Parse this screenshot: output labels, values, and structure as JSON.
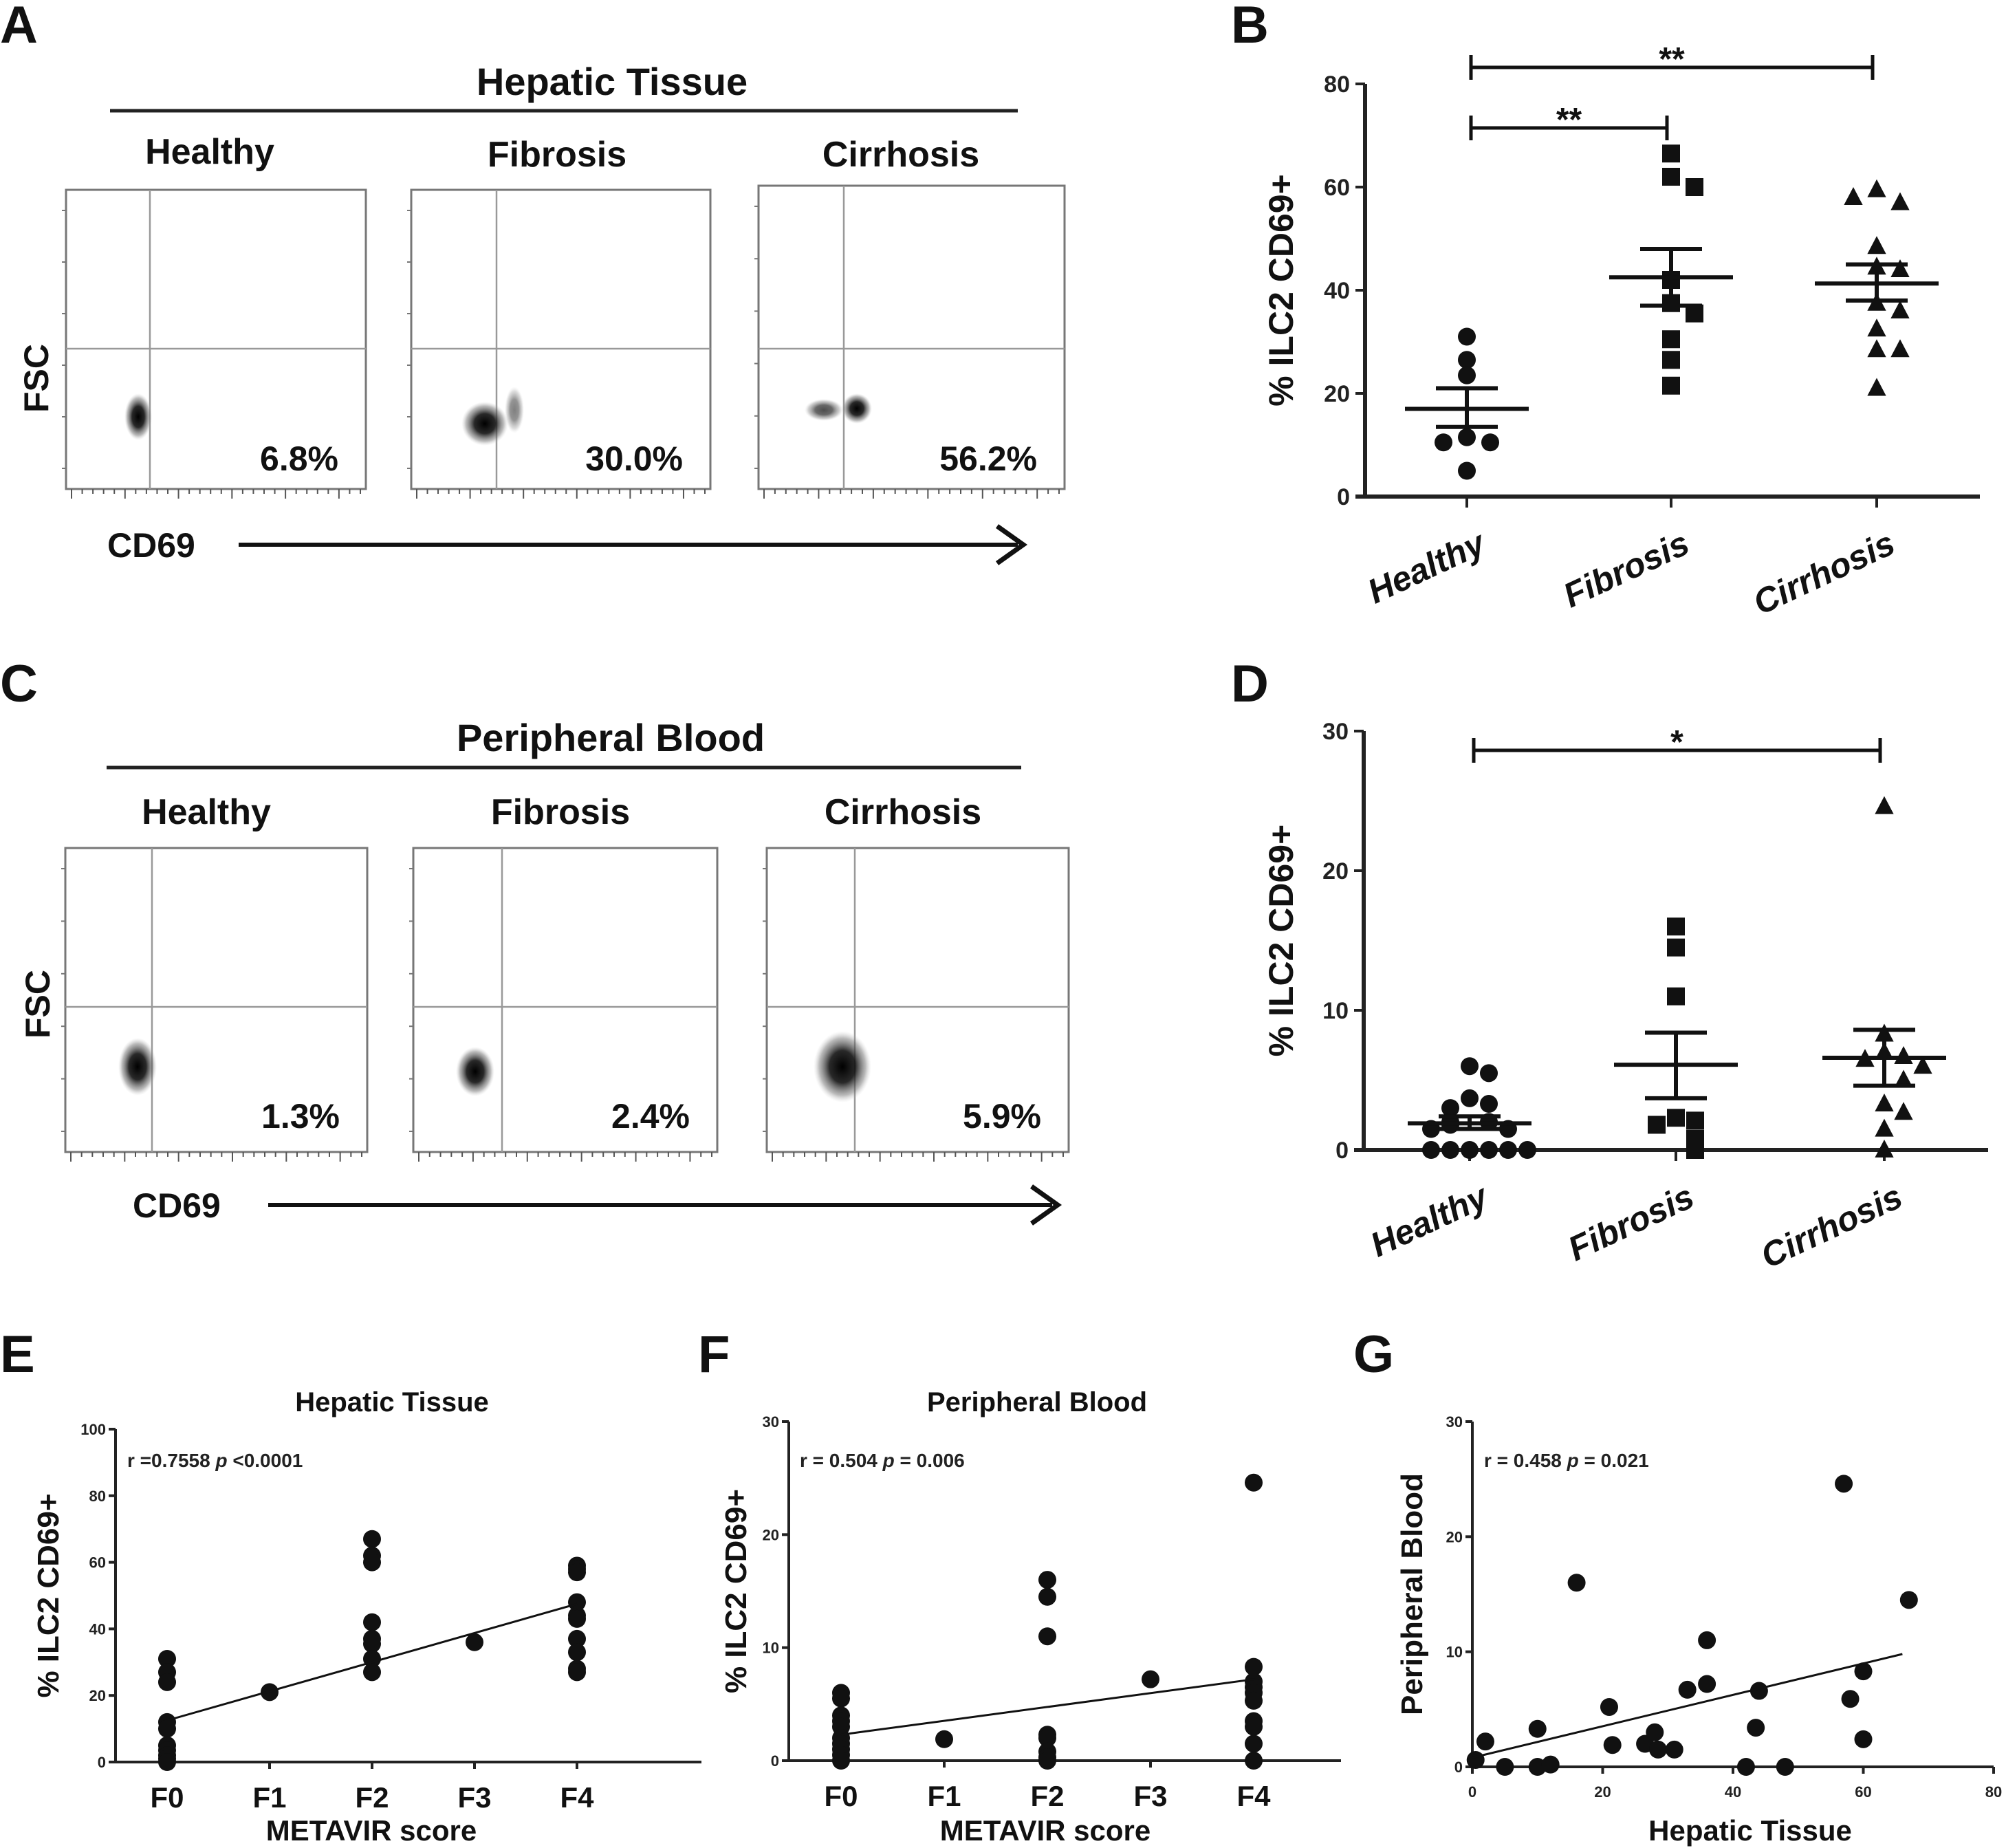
{
  "figure": {
    "panels": {
      "A": {
        "letter": "A",
        "title": "Hepatic Tissue",
        "y_axis_label": "FSC",
        "x_axis_label": "CD69",
        "plots": [
          {
            "label": "Healthy",
            "percent": "6.8%"
          },
          {
            "label": "Fibrosis",
            "percent": "30.0%"
          },
          {
            "label": "Cirrhosis",
            "percent": "56.2%"
          }
        ]
      },
      "C": {
        "letter": "C",
        "title": "Peripheral Blood",
        "y_axis_label": "FSC",
        "x_axis_label": "CD69",
        "plots": [
          {
            "label": "Healthy",
            "percent": "1.3%"
          },
          {
            "label": "Fibrosis",
            "percent": "2.4%"
          },
          {
            "label": "Cirrhosis",
            "percent": "5.9%"
          }
        ]
      }
    }
  },
  "chart_data": [
    {
      "id": "B",
      "letter": "B",
      "type": "scatter",
      "title": "",
      "xlabel": "",
      "ylabel": "% ILC2 CD69+",
      "ylim": [
        0,
        80
      ],
      "yticks": [
        "0",
        "20",
        "40",
        "60",
        "80"
      ],
      "categories": [
        "Healthy",
        "Fibrosis",
        "Cirrhosis"
      ],
      "series": [
        {
          "name": "Healthy",
          "marker": "circle",
          "values": [
            31,
            26.5,
            23.5,
            11.5,
            10.5,
            10.5,
            5
          ],
          "mean": 17,
          "sem": [
            13.5,
            21
          ]
        },
        {
          "name": "Fibrosis",
          "marker": "square",
          "values": [
            66.5,
            62,
            60,
            42,
            37.5,
            35.5,
            30.5,
            26.5,
            21.5
          ],
          "mean": 42.5,
          "sem": [
            37,
            48
          ]
        },
        {
          "name": "Cirrhosis",
          "marker": "triangle",
          "values": [
            59.5,
            57,
            58,
            48.5,
            44.5,
            44,
            37.5,
            36,
            32.5,
            28.5,
            28.5,
            21
          ],
          "mean": 41.3,
          "sem": [
            38,
            45
          ]
        }
      ],
      "significance": [
        {
          "from": "Healthy",
          "to": "Cirrhosis",
          "label": "**"
        },
        {
          "from": "Healthy",
          "to": "Fibrosis",
          "label": "**"
        }
      ]
    },
    {
      "id": "D",
      "letter": "D",
      "type": "scatter",
      "title": "",
      "xlabel": "",
      "ylabel": "% ILC2 CD69+",
      "ylim": [
        0,
        30
      ],
      "yticks": [
        "0",
        "10",
        "20",
        "30"
      ],
      "categories": [
        "Healthy",
        "Fibrosis",
        "Cirrhosis"
      ],
      "series": [
        {
          "name": "Healthy",
          "marker": "circle",
          "values": [
            6,
            5.5,
            3.7,
            3.3,
            3.0,
            2.0,
            2.0,
            1.8,
            1.5,
            1.5,
            0,
            0,
            0,
            0,
            0,
            0
          ],
          "mean": 1.9,
          "sem": [
            1.5,
            2.4
          ]
        },
        {
          "name": "Fibrosis",
          "marker": "square",
          "values": [
            16,
            14.5,
            11,
            2.3,
            2.1,
            1.8,
            0.8,
            0
          ],
          "mean": 6.1,
          "sem": [
            3.7,
            8.4
          ]
        },
        {
          "name": "Cirrhosis",
          "marker": "triangle",
          "values": [
            24.6,
            8.3,
            7.0,
            6.7,
            6.5,
            6.0,
            5.0,
            3.3,
            2.7,
            1.5,
            0
          ],
          "mean": 6.6,
          "sem": [
            4.6,
            8.6
          ]
        }
      ],
      "significance": [
        {
          "from": "Healthy",
          "to": "Cirrhosis",
          "label": "*"
        }
      ]
    },
    {
      "id": "E",
      "letter": "E",
      "type": "scatter",
      "title": "Hepatic Tissue",
      "xlabel": "METAVIR score",
      "ylabel": "% ILC2 CD69+",
      "ylim": [
        0,
        100
      ],
      "yticks": [
        "0",
        "20",
        "40",
        "60",
        "80",
        "100"
      ],
      "categories": [
        "F0",
        "F1",
        "F2",
        "F3",
        "F4"
      ],
      "annotation": {
        "r": "r =0.7558",
        "p_label": "p",
        "p_value": "<0.0001"
      },
      "regression": {
        "start": 12.5,
        "end": 47.5
      },
      "points": [
        {
          "x": "F0",
          "values": [
            31,
            27,
            24,
            12,
            10,
            5,
            3.5,
            2,
            1,
            0
          ]
        },
        {
          "x": "F1",
          "values": [
            21
          ]
        },
        {
          "x": "F2",
          "values": [
            67,
            62,
            60,
            42,
            37,
            35.5,
            31,
            27
          ]
        },
        {
          "x": "F3",
          "values": [
            36
          ]
        },
        {
          "x": "F4",
          "values": [
            59,
            58,
            57,
            48,
            44,
            43,
            37,
            33,
            28,
            27
          ]
        }
      ]
    },
    {
      "id": "F",
      "letter": "F",
      "type": "scatter",
      "title": "Peripheral Blood",
      "xlabel": "METAVIR score",
      "ylabel": "% ILC2 CD69+",
      "ylim": [
        0,
        30
      ],
      "yticks": [
        "0",
        "10",
        "20",
        "30"
      ],
      "categories": [
        "F0",
        "F1",
        "F2",
        "F3",
        "F4"
      ],
      "annotation": {
        "r": "r = 0.504",
        "p_label": "p",
        "p_value": "= 0.006"
      },
      "regression": {
        "start": 2.3,
        "end": 7.2
      },
      "points": [
        {
          "x": "F0",
          "values": [
            6,
            5.5,
            4,
            3.5,
            3,
            2,
            1.5,
            1,
            0.5,
            0
          ]
        },
        {
          "x": "F1",
          "values": [
            1.9
          ]
        },
        {
          "x": "F2",
          "values": [
            16,
            14.5,
            11,
            2.3,
            2,
            0.8,
            0.3,
            0
          ]
        },
        {
          "x": "F3",
          "values": [
            7.2
          ]
        },
        {
          "x": "F4",
          "values": [
            24.6,
            8.3,
            7,
            6.5,
            6,
            5.3,
            3.5,
            3,
            1.5,
            0
          ]
        }
      ]
    },
    {
      "id": "G",
      "letter": "G",
      "type": "scatter",
      "title": "",
      "xlabel": "Hepatic Tissue",
      "ylabel": "Peripheral Blood",
      "xlim": [
        0,
        80
      ],
      "ylim": [
        0,
        30
      ],
      "xticks": [
        "0",
        "20",
        "40",
        "60",
        "80"
      ],
      "yticks": [
        "0",
        "10",
        "20",
        "30"
      ],
      "annotation": {
        "r": "r = 0.458",
        "p_label": "p",
        "p_value": "= 0.021"
      },
      "regression": {
        "x": [
          0,
          66
        ],
        "y": [
          0.8,
          9.8
        ]
      },
      "points": [
        [
          0.5,
          0.6
        ],
        [
          2,
          2.2
        ],
        [
          5,
          0
        ],
        [
          10,
          0
        ],
        [
          10,
          3.3
        ],
        [
          12,
          0.2
        ],
        [
          16,
          16
        ],
        [
          21,
          5.2
        ],
        [
          21.5,
          1.9
        ],
        [
          26.5,
          2
        ],
        [
          28,
          3
        ],
        [
          28.5,
          1.5
        ],
        [
          31,
          1.5
        ],
        [
          33,
          6.7
        ],
        [
          36,
          11
        ],
        [
          36,
          7.2
        ],
        [
          42,
          0
        ],
        [
          43.5,
          3.4
        ],
        [
          44,
          6.6
        ],
        [
          48,
          0
        ],
        [
          57,
          24.6
        ],
        [
          58,
          5.9
        ],
        [
          60,
          8.3
        ],
        [
          60,
          2.4
        ],
        [
          67,
          14.5
        ]
      ]
    }
  ]
}
